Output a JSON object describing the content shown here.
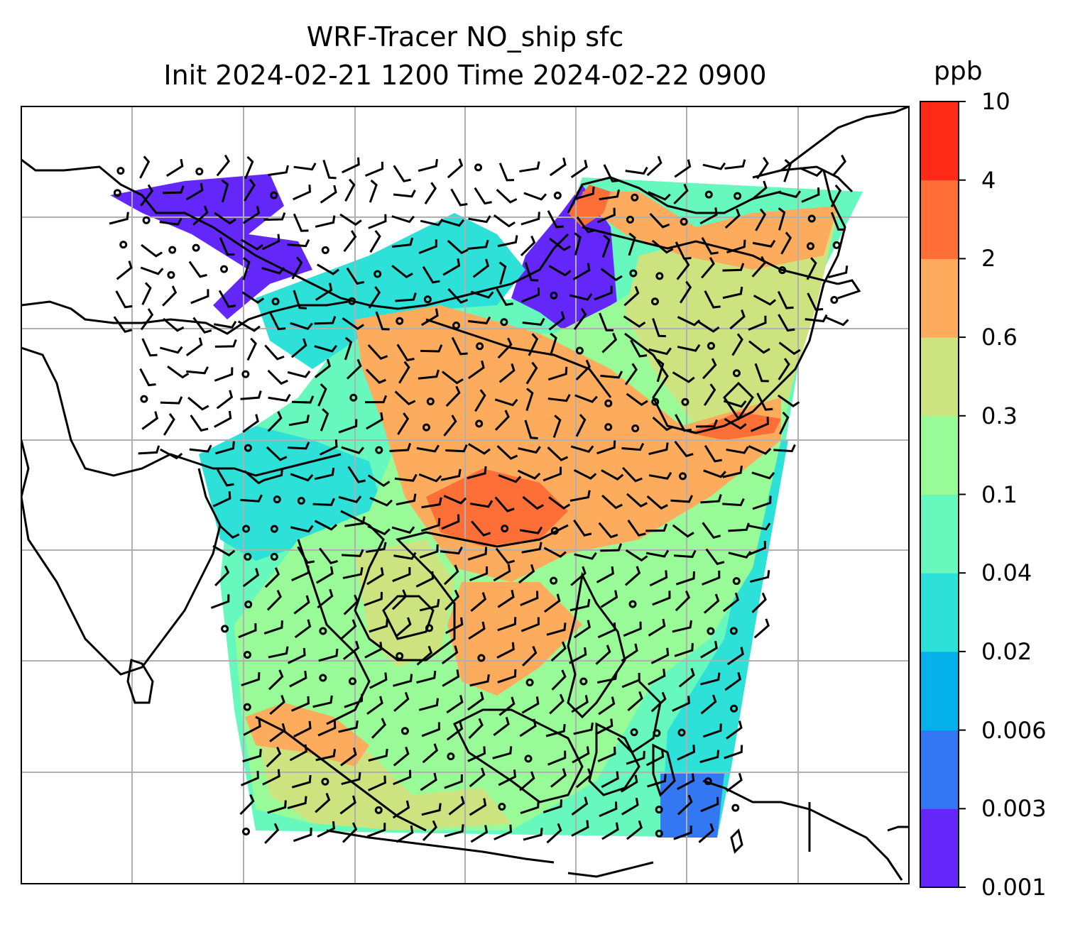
{
  "title_line1": "WRF-Tracer NO_ship sfc",
  "title_line2": "Init 2024-02-21 1200 Time 2024-02-22 0900",
  "colorbar": {
    "unit": "ppb",
    "levels": [
      "0.001",
      "0.003",
      "0.006",
      "0.02",
      "0.04",
      "0.1",
      "0.3",
      "0.6",
      "2",
      "4",
      "10"
    ],
    "colors": [
      "#6427fa",
      "#3477f2",
      "#05b1eb",
      "#2de0d8",
      "#67f8bd",
      "#98fb98",
      "#cde380",
      "#fdac5d",
      "#fe6f38",
      "#ff2a17"
    ]
  },
  "map": {
    "features": [
      "coastlines",
      "country-borders",
      "lat-lon-gridlines",
      "wind-barbs",
      "no-ship-concentration-field"
    ],
    "gridlines": "on"
  }
}
